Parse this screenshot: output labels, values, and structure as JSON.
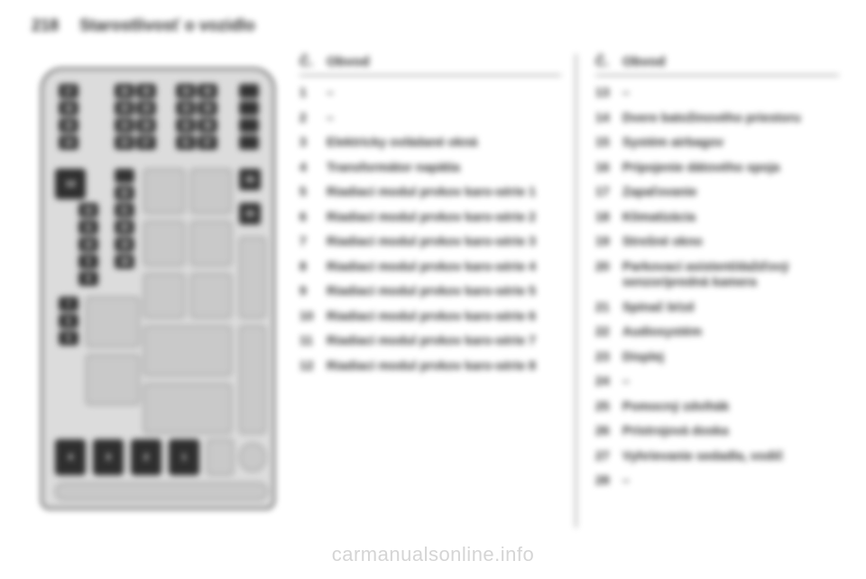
{
  "header": {
    "page_num": "218",
    "title": "Starostlivosť o vozidlo"
  },
  "col_headers": {
    "num": "Č.",
    "label": "Obvod"
  },
  "col1_items": [
    {
      "n": "1",
      "t": "–"
    },
    {
      "n": "2",
      "t": "–"
    },
    {
      "n": "3",
      "t": "Elektricky ovládané okná"
    },
    {
      "n": "4",
      "t": "Transformátor napätia"
    },
    {
      "n": "5",
      "t": "Riadiaci modul prvkov karo-série 1"
    },
    {
      "n": "6",
      "t": "Riadiaci modul prvkov karo-série 2"
    },
    {
      "n": "7",
      "t": "Riadiaci modul prvkov karo-série 3"
    },
    {
      "n": "8",
      "t": "Riadiaci modul prvkov karo-série 4"
    },
    {
      "n": "9",
      "t": "Riadiaci modul prvkov karo-série 5"
    },
    {
      "n": "10",
      "t": "Riadiaci modul prvkov karo-série 6"
    },
    {
      "n": "11",
      "t": "Riadiaci modul prvkov karo-série 7"
    },
    {
      "n": "12",
      "t": "Riadiaci modul prvkov karo-série 8"
    }
  ],
  "col2_items": [
    {
      "n": "13",
      "t": "–"
    },
    {
      "n": "14",
      "t": "Dvere batožinového priestoru"
    },
    {
      "n": "15",
      "t": "Systém airbagov"
    },
    {
      "n": "16",
      "t": "Pripojenie dátového spoja"
    },
    {
      "n": "17",
      "t": "Zapaľovanie"
    },
    {
      "n": "18",
      "t": "Klimatizácia"
    },
    {
      "n": "19",
      "t": "Strešné okno"
    },
    {
      "n": "20",
      "t": "Parkovací asistent/dažďový senzor/predná kamera"
    },
    {
      "n": "21",
      "t": "Spínač bŕzd"
    },
    {
      "n": "22",
      "t": "Audiosystém"
    },
    {
      "n": "23",
      "t": "Displej"
    },
    {
      "n": "24",
      "t": "–"
    },
    {
      "n": "25",
      "t": "Pomocný zdvihák"
    },
    {
      "n": "26",
      "t": "Prístrojová doska"
    },
    {
      "n": "27",
      "t": "Vyhrievanie sedadla, vodič"
    },
    {
      "n": "28",
      "t": "–"
    }
  ],
  "watermark": "carmanualsonline.info",
  "diagram": {
    "background": "#dcdcdc",
    "border_color": "#3a3a3a",
    "fuse_color": "#2f2f2f",
    "slot_color": "#c8c8c8",
    "relay_color": "#2a2a2a",
    "top_fuses": {
      "cols": [
        18,
        86,
        110,
        154,
        178,
        222
      ],
      "rows": [
        16,
        35,
        54,
        73
      ],
      "labels": [
        [
          "17",
          "26",
          "30",
          "",
          "34",
          "40"
        ],
        [
          "16",
          "25",
          "29",
          "",
          "33",
          "39"
        ],
        [
          "15",
          "24",
          "28",
          "",
          "32",
          "38"
        ],
        [
          "14",
          "23",
          "27",
          "",
          "31",
          "37"
        ]
      ]
    }
  }
}
